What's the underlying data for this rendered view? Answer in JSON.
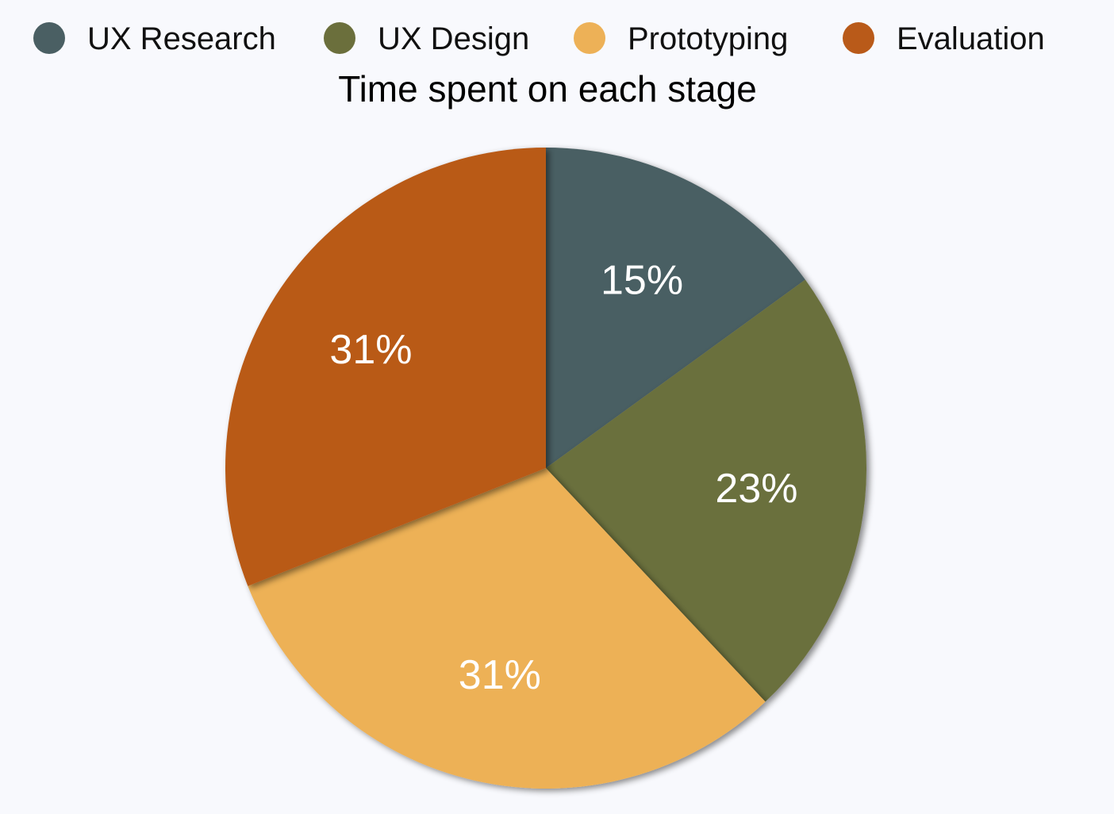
{
  "chart_data": {
    "type": "pie",
    "title": "Time spent on each stage",
    "legend_position": "top",
    "categories": [
      "UX Research",
      "UX Design",
      "Prototyping",
      "Evaluation"
    ],
    "values": [
      15,
      23,
      31,
      31
    ],
    "labels": [
      "15%",
      "23%",
      "31%",
      "31%"
    ],
    "colors": [
      "#4a5f63",
      "#6b6f3c",
      "#edb157",
      "#b95a19"
    ],
    "start_angle_deg": 0,
    "direction": "clockwise"
  }
}
